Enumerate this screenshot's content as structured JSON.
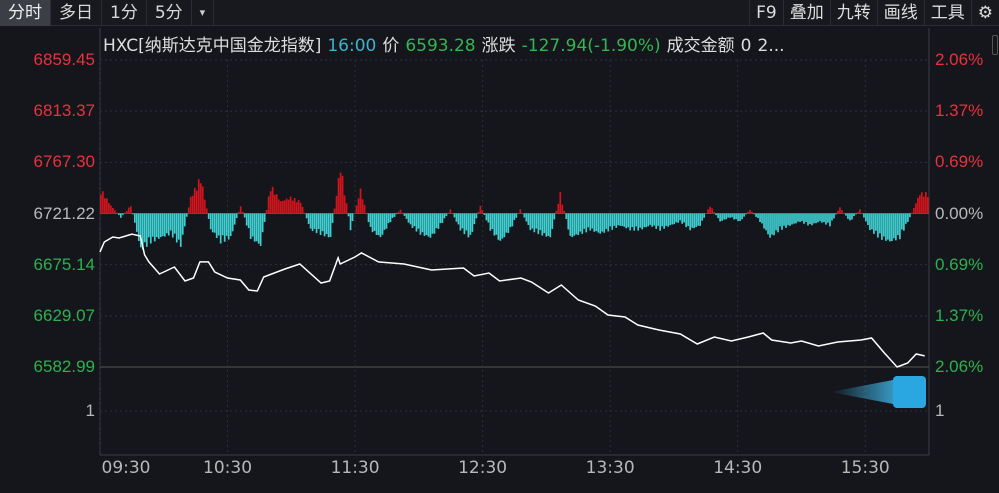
{
  "toolbar": {
    "tabs": [
      "分时",
      "多日",
      "1分",
      "5分"
    ],
    "active_tab": 0,
    "tools": [
      "F9",
      "叠加",
      "九转",
      "画线",
      "工具"
    ]
  },
  "info": {
    "code_name": "HXC[纳斯达克中国金龙指数]",
    "time": "16:00",
    "price_label": "价",
    "price": "6593.28",
    "change_label": "涨跌",
    "change": "-127.94(-1.90%)",
    "amount_label": "成交金额",
    "amount": "0",
    "more": "2..."
  },
  "colors": {
    "up": "#e8323c",
    "down": "#2eb04e",
    "line": "#ffffff",
    "bar_up": "#d4141c",
    "bar_down": "#3fd0d2",
    "bg": "#14161c"
  },
  "chart_data": {
    "type": "line",
    "prev_close": 6721.22,
    "ylim": [
      6582.99,
      6859.45
    ],
    "left_ticks": [
      "6859.45",
      "6813.37",
      "6767.30",
      "6721.22",
      "6675.14",
      "6629.07",
      "6582.99"
    ],
    "right_ticks": [
      "2.06%",
      "1.37%",
      "0.69%",
      "0.00%",
      "0.69%",
      "1.37%",
      "2.06%"
    ],
    "x_ticks": [
      "09:30",
      "10:30",
      "11:30",
      "12:30",
      "13:30",
      "14:30",
      "15:30"
    ],
    "sub_panel_label": "1",
    "series": [
      {
        "points": [
          [
            "09:30",
            6686.6
          ],
          [
            "09:32",
            6695.6
          ],
          [
            "09:36",
            6700.1
          ],
          [
            "09:39",
            6699.2
          ],
          [
            "09:45",
            6702.7
          ],
          [
            "09:49",
            6701.0
          ],
          [
            "09:51",
            6683.9
          ],
          [
            "09:53",
            6677.6
          ],
          [
            "09:58",
            6666.7
          ],
          [
            "10:05",
            6673.0
          ],
          [
            "10:10",
            6660.4
          ],
          [
            "10:14",
            6663.1
          ],
          [
            "10:17",
            6677.6
          ],
          [
            "10:21",
            6677.6
          ],
          [
            "10:24",
            6668.5
          ],
          [
            "10:30",
            6663.1
          ],
          [
            "10:36",
            6661.3
          ],
          [
            "10:40",
            6652.3
          ],
          [
            "10:44",
            6651.4
          ],
          [
            "10:47",
            6664.0
          ],
          [
            "10:57",
            6671.2
          ],
          [
            "11:04",
            6675.7
          ],
          [
            "11:14",
            6658.6
          ],
          [
            "11:18",
            6660.4
          ],
          [
            "11:22",
            6681.2
          ],
          [
            "11:23",
            6675.7
          ],
          [
            "11:30",
            6682.1
          ],
          [
            "11:33",
            6685.7
          ],
          [
            "11:41",
            6677.6
          ],
          [
            "11:53",
            6675.7
          ],
          [
            "12:06",
            6670.3
          ],
          [
            "12:21",
            6672.1
          ],
          [
            "12:26",
            6664.9
          ],
          [
            "12:33",
            6667.6
          ],
          [
            "12:38",
            6660.4
          ],
          [
            "12:48",
            6663.1
          ],
          [
            "12:53",
            6659.5
          ],
          [
            "13:01",
            6649.6
          ],
          [
            "13:07",
            6656.8
          ],
          [
            "13:15",
            6643.3
          ],
          [
            "13:23",
            6637.9
          ],
          [
            "13:29",
            6629.8
          ],
          [
            "13:37",
            6628.0
          ],
          [
            "13:43",
            6620.8
          ],
          [
            "13:53",
            6616.3
          ],
          [
            "14:03",
            6612.7
          ],
          [
            "14:11",
            6603.7
          ],
          [
            "14:19",
            6610.0
          ],
          [
            "14:27",
            6606.4
          ],
          [
            "14:35",
            6610.0
          ],
          [
            "14:42",
            6613.6
          ],
          [
            "14:46",
            6607.3
          ],
          [
            "14:55",
            6604.6
          ],
          [
            "15:00",
            6606.4
          ],
          [
            "15:08",
            6601.9
          ],
          [
            "15:17",
            6605.5
          ],
          [
            "15:28",
            6607.3
          ],
          [
            "15:33",
            6609.1
          ],
          [
            "15:39",
            6595.6
          ],
          [
            "15:45",
            6583.0
          ],
          [
            "15:50",
            6586.6
          ],
          [
            "15:54",
            6594.7
          ],
          [
            "15:58",
            6593.0
          ]
        ]
      }
    ],
    "bars_pct": [
      0.3,
      0.1,
      -0.05,
      0.1,
      -0.45,
      -0.35,
      -0.3,
      -0.25,
      -0.4,
      0.2,
      0.45,
      -0.2,
      -0.35,
      -0.3,
      0.1,
      -0.3,
      -0.4,
      0.35,
      0.15,
      0.2,
      0.15,
      -0.2,
      -0.25,
      -0.3,
      0.6,
      -0.2,
      0.3,
      -0.2,
      -0.3,
      -0.1,
      0.05,
      -0.15,
      -0.25,
      -0.3,
      -0.15,
      0.05,
      -0.2,
      -0.3,
      0.1,
      -0.2,
      -0.35,
      -0.2,
      0.05,
      -0.2,
      -0.25,
      -0.3,
      0.25,
      -0.3,
      -0.25,
      -0.2,
      -0.25,
      -0.2,
      -0.15,
      -0.2,
      -0.2,
      -0.15,
      -0.2,
      -0.15,
      -0.1,
      -0.2,
      -0.15,
      0.1,
      -0.1,
      -0.05,
      -0.1,
      0.05,
      -0.1,
      -0.3,
      -0.2,
      -0.15,
      -0.1,
      -0.15,
      -0.1,
      -0.15,
      0.08,
      -0.1,
      0.05,
      -0.2,
      -0.3,
      -0.35,
      -0.3,
      -0.05,
      0.25
    ]
  }
}
